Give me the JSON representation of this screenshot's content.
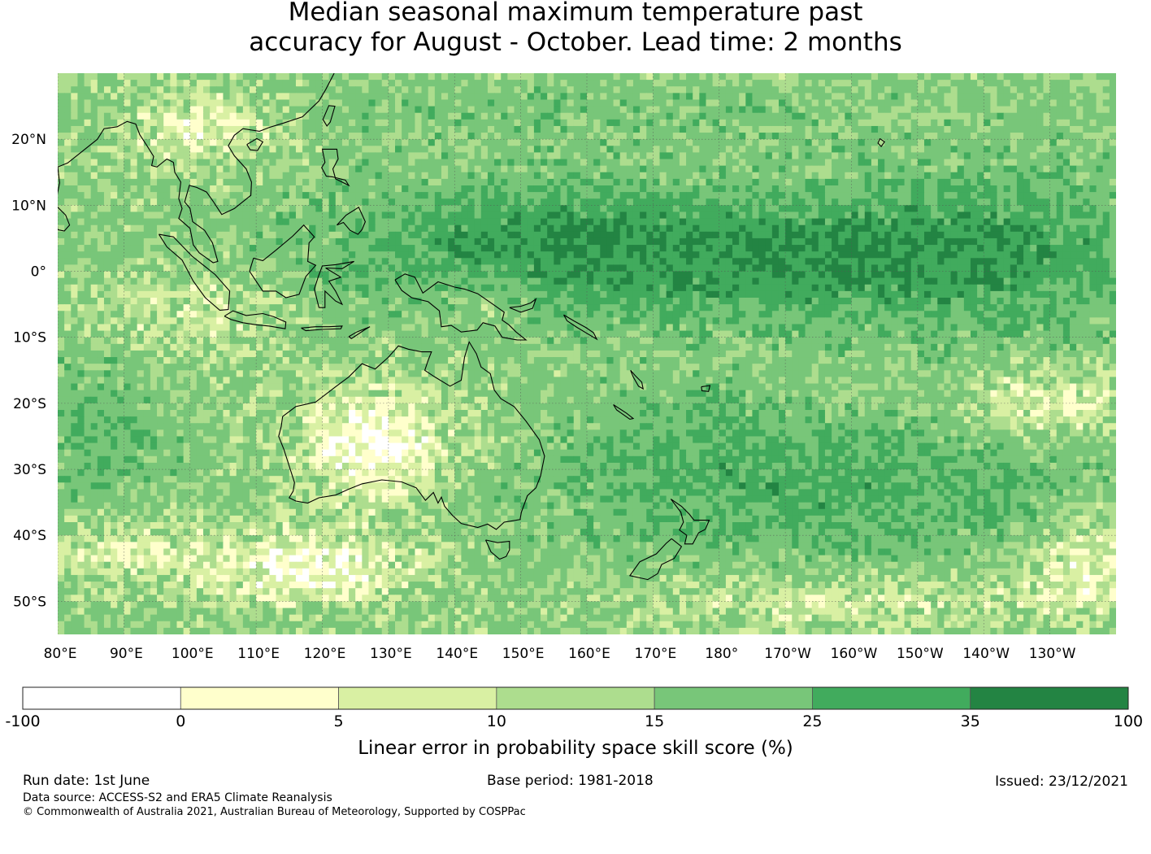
{
  "title": {
    "line1": "Median seasonal maximum temperature past",
    "line2": "accuracy for August - October. Lead time: 2 months"
  },
  "map": {
    "lon_range": [
      80,
      240
    ],
    "lat_range": [
      -55,
      30
    ],
    "lon_ticks": [
      {
        "value": 80,
        "label": "80°E"
      },
      {
        "value": 90,
        "label": "90°E"
      },
      {
        "value": 100,
        "label": "100°E"
      },
      {
        "value": 110,
        "label": "110°E"
      },
      {
        "value": 120,
        "label": "120°E"
      },
      {
        "value": 130,
        "label": "130°E"
      },
      {
        "value": 140,
        "label": "140°E"
      },
      {
        "value": 150,
        "label": "150°E"
      },
      {
        "value": 160,
        "label": "160°E"
      },
      {
        "value": 170,
        "label": "170°E"
      },
      {
        "value": 180,
        "label": "180°"
      },
      {
        "value": 190,
        "label": "170°W"
      },
      {
        "value": 200,
        "label": "160°W"
      },
      {
        "value": 210,
        "label": "150°W"
      },
      {
        "value": 220,
        "label": "140°W"
      },
      {
        "value": 230,
        "label": "130°W"
      }
    ],
    "lat_ticks": [
      {
        "value": 20,
        "label": "20°N"
      },
      {
        "value": 10,
        "label": "10°N"
      },
      {
        "value": 0,
        "label": "0°"
      },
      {
        "value": -10,
        "label": "10°S"
      },
      {
        "value": -20,
        "label": "20°S"
      },
      {
        "value": -30,
        "label": "30°S"
      },
      {
        "value": -40,
        "label": "40°S"
      },
      {
        "value": -50,
        "label": "50°S"
      }
    ]
  },
  "colorbar": {
    "title": "Linear error in probability space skill score (%)",
    "boundaries": [
      "-100",
      "0",
      "5",
      "10",
      "15",
      "25",
      "35",
      "100"
    ],
    "colors": [
      "#ffffff",
      "#ffffcc",
      "#d9f0a3",
      "#addd8e",
      "#78c679",
      "#41ab5d",
      "#238443"
    ]
  },
  "footer": {
    "run_date": "Run date: 1st June",
    "base_period": "Base period: 1981-2018",
    "issued": "Issued: 23/12/2021",
    "data_source": "Data source: ACCESS-S2 and ERA5 Climate Reanalysis",
    "copyright": "© Commonwealth of Australia 2021, Australian Bureau of Meteorology, Supported by COSPPac"
  }
}
